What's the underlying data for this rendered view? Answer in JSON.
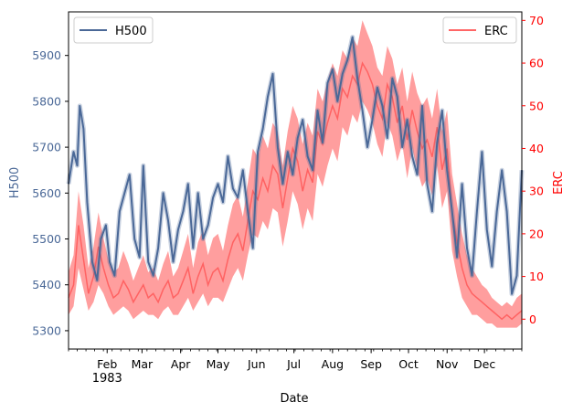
{
  "chart_data": {
    "type": "line",
    "xlabel": "Date",
    "ylabel_left": "H500",
    "ylabel_right": "ERC",
    "year_label": "1983",
    "x_range": [
      "1983-01-01",
      "1983-12-31"
    ],
    "x_ticks": [
      "Feb",
      "Mar",
      "Apr",
      "May",
      "Jun",
      "Jul",
      "Aug",
      "Sep",
      "Oct",
      "Nov",
      "Dec"
    ],
    "ylim_left": [
      5260,
      5995
    ],
    "ylim_right": [
      -7,
      72
    ],
    "yticks_left": [
      5300,
      5400,
      5500,
      5600,
      5700,
      5800,
      5900
    ],
    "yticks_right": [
      0,
      10,
      20,
      30,
      40,
      50,
      60,
      70
    ],
    "colors": {
      "h500": "#4a6897",
      "erc": "#ff0000",
      "erc_line": "#ff4d4d",
      "h500_axis": "#4a6897"
    },
    "legends": {
      "left": "H500",
      "right": "ERC"
    },
    "series": [
      {
        "name": "H500",
        "axis": "left",
        "x": [
          "1983-01-01",
          "1983-01-05",
          "1983-01-08",
          "1983-01-10",
          "1983-01-13",
          "1983-01-16",
          "1983-01-20",
          "1983-01-24",
          "1983-01-27",
          "1983-01-31",
          "1983-02-03",
          "1983-02-07",
          "1983-02-11",
          "1983-02-15",
          "1983-02-19",
          "1983-02-23",
          "1983-02-27",
          "1983-03-02",
          "1983-03-06",
          "1983-03-10",
          "1983-03-14",
          "1983-03-18",
          "1983-03-22",
          "1983-03-26",
          "1983-03-30",
          "1983-04-03",
          "1983-04-07",
          "1983-04-11",
          "1983-04-15",
          "1983-04-19",
          "1983-04-23",
          "1983-04-27",
          "1983-05-01",
          "1983-05-05",
          "1983-05-09",
          "1983-05-13",
          "1983-05-17",
          "1983-05-21",
          "1983-05-25",
          "1983-05-29",
          "1983-06-02",
          "1983-06-06",
          "1983-06-10",
          "1983-06-14",
          "1983-06-18",
          "1983-06-22",
          "1983-06-26",
          "1983-06-30",
          "1983-07-04",
          "1983-07-08",
          "1983-07-12",
          "1983-07-16",
          "1983-07-20",
          "1983-07-24",
          "1983-07-28",
          "1983-08-01",
          "1983-08-05",
          "1983-08-09",
          "1983-08-13",
          "1983-08-17",
          "1983-08-21",
          "1983-08-25",
          "1983-08-29",
          "1983-09-02",
          "1983-09-06",
          "1983-09-10",
          "1983-09-14",
          "1983-09-18",
          "1983-09-22",
          "1983-09-26",
          "1983-09-30",
          "1983-10-04",
          "1983-10-08",
          "1983-10-12",
          "1983-10-16",
          "1983-10-20",
          "1983-10-24",
          "1983-10-28",
          "1983-11-01",
          "1983-11-05",
          "1983-11-09",
          "1983-11-13",
          "1983-11-17",
          "1983-11-21",
          "1983-11-25",
          "1983-11-29",
          "1983-12-03",
          "1983-12-07",
          "1983-12-11",
          "1983-12-15",
          "1983-12-19",
          "1983-12-23",
          "1983-12-27",
          "1983-12-31"
        ],
        "y": [
          5620,
          5690,
          5660,
          5790,
          5740,
          5580,
          5450,
          5410,
          5500,
          5530,
          5450,
          5420,
          5560,
          5600,
          5640,
          5500,
          5460,
          5660,
          5450,
          5420,
          5480,
          5600,
          5540,
          5450,
          5520,
          5560,
          5620,
          5480,
          5600,
          5500,
          5530,
          5590,
          5620,
          5580,
          5680,
          5610,
          5590,
          5650,
          5560,
          5480,
          5690,
          5740,
          5810,
          5860,
          5700,
          5620,
          5690,
          5640,
          5720,
          5760,
          5680,
          5650,
          5780,
          5710,
          5840,
          5870,
          5800,
          5860,
          5890,
          5940,
          5850,
          5780,
          5700,
          5760,
          5830,
          5790,
          5720,
          5850,
          5810,
          5700,
          5760,
          5680,
          5640,
          5790,
          5620,
          5560,
          5710,
          5780,
          5650,
          5560,
          5460,
          5620,
          5480,
          5420,
          5560,
          5690,
          5520,
          5440,
          5560,
          5650,
          5560,
          5380,
          5420,
          5650
        ]
      },
      {
        "name": "ERC",
        "axis": "right",
        "x": [
          "1983-01-01",
          "1983-01-05",
          "1983-01-09",
          "1983-01-13",
          "1983-01-17",
          "1983-01-21",
          "1983-01-25",
          "1983-01-29",
          "1983-02-02",
          "1983-02-06",
          "1983-02-10",
          "1983-02-14",
          "1983-02-18",
          "1983-02-22",
          "1983-02-26",
          "1983-03-02",
          "1983-03-06",
          "1983-03-10",
          "1983-03-14",
          "1983-03-18",
          "1983-03-22",
          "1983-03-26",
          "1983-03-30",
          "1983-04-03",
          "1983-04-07",
          "1983-04-11",
          "1983-04-15",
          "1983-04-19",
          "1983-04-23",
          "1983-04-27",
          "1983-05-01",
          "1983-05-05",
          "1983-05-09",
          "1983-05-13",
          "1983-05-17",
          "1983-05-21",
          "1983-05-25",
          "1983-05-29",
          "1983-06-02",
          "1983-06-06",
          "1983-06-10",
          "1983-06-14",
          "1983-06-18",
          "1983-06-22",
          "1983-06-26",
          "1983-06-30",
          "1983-07-04",
          "1983-07-08",
          "1983-07-12",
          "1983-07-16",
          "1983-07-20",
          "1983-07-24",
          "1983-07-28",
          "1983-08-01",
          "1983-08-05",
          "1983-08-09",
          "1983-08-13",
          "1983-08-17",
          "1983-08-21",
          "1983-08-25",
          "1983-08-29",
          "1983-09-02",
          "1983-09-06",
          "1983-09-10",
          "1983-09-14",
          "1983-09-18",
          "1983-09-22",
          "1983-09-26",
          "1983-09-30",
          "1983-10-04",
          "1983-10-08",
          "1983-10-12",
          "1983-10-16",
          "1983-10-20",
          "1983-10-24",
          "1983-10-28",
          "1983-11-01",
          "1983-11-05",
          "1983-11-09",
          "1983-11-13",
          "1983-11-17",
          "1983-11-21",
          "1983-11-25",
          "1983-11-29",
          "1983-12-03",
          "1983-12-07",
          "1983-12-11",
          "1983-12-15",
          "1983-12-19",
          "1983-12-23",
          "1983-12-27",
          "1983-12-31"
        ],
        "y": [
          5,
          8,
          22,
          14,
          6,
          10,
          17,
          12,
          8,
          5,
          6,
          9,
          7,
          4,
          6,
          8,
          5,
          6,
          4,
          7,
          9,
          5,
          6,
          9,
          12,
          6,
          10,
          13,
          8,
          11,
          12,
          9,
          14,
          18,
          20,
          16,
          23,
          30,
          28,
          33,
          30,
          36,
          34,
          26,
          33,
          40,
          37,
          30,
          35,
          32,
          44,
          41,
          46,
          50,
          47,
          54,
          52,
          57,
          55,
          60,
          58,
          55,
          50,
          47,
          55,
          52,
          46,
          50,
          42,
          49,
          44,
          40,
          42,
          38,
          45,
          35,
          40,
          25,
          18,
          12,
          8,
          6,
          5,
          4,
          3,
          2,
          1,
          0,
          1,
          0,
          1,
          2
        ],
        "lower": [
          1,
          3,
          12,
          7,
          2,
          4,
          8,
          6,
          3,
          1,
          2,
          3,
          2,
          0,
          1,
          2,
          1,
          1,
          0,
          2,
          3,
          1,
          1,
          3,
          5,
          2,
          4,
          6,
          3,
          5,
          5,
          4,
          7,
          10,
          12,
          9,
          15,
          20,
          19,
          23,
          21,
          26,
          25,
          17,
          23,
          30,
          27,
          21,
          26,
          23,
          34,
          31,
          36,
          40,
          37,
          45,
          43,
          48,
          46,
          51,
          49,
          46,
          41,
          38,
          46,
          43,
          37,
          41,
          33,
          40,
          35,
          31,
          33,
          29,
          36,
          26,
          30,
          16,
          10,
          5,
          3,
          1,
          1,
          0,
          -1,
          -1,
          -2,
          -2,
          -2,
          -2,
          -2,
          -1
        ],
        "upper": [
          11,
          15,
          30,
          22,
          12,
          17,
          25,
          19,
          14,
          11,
          12,
          16,
          13,
          9,
          12,
          15,
          11,
          12,
          9,
          13,
          16,
          10,
          12,
          16,
          20,
          12,
          18,
          21,
          15,
          19,
          20,
          16,
          22,
          27,
          29,
          24,
          32,
          40,
          38,
          43,
          40,
          46,
          44,
          36,
          44,
          50,
          47,
          41,
          46,
          43,
          54,
          51,
          56,
          60,
          57,
          63,
          61,
          66,
          64,
          70,
          67,
          64,
          59,
          57,
          64,
          61,
          55,
          59,
          51,
          58,
          53,
          50,
          52,
          47,
          54,
          44,
          49,
          34,
          27,
          20,
          15,
          12,
          10,
          8,
          7,
          5,
          4,
          3,
          4,
          3,
          5,
          6
        ]
      }
    ]
  }
}
